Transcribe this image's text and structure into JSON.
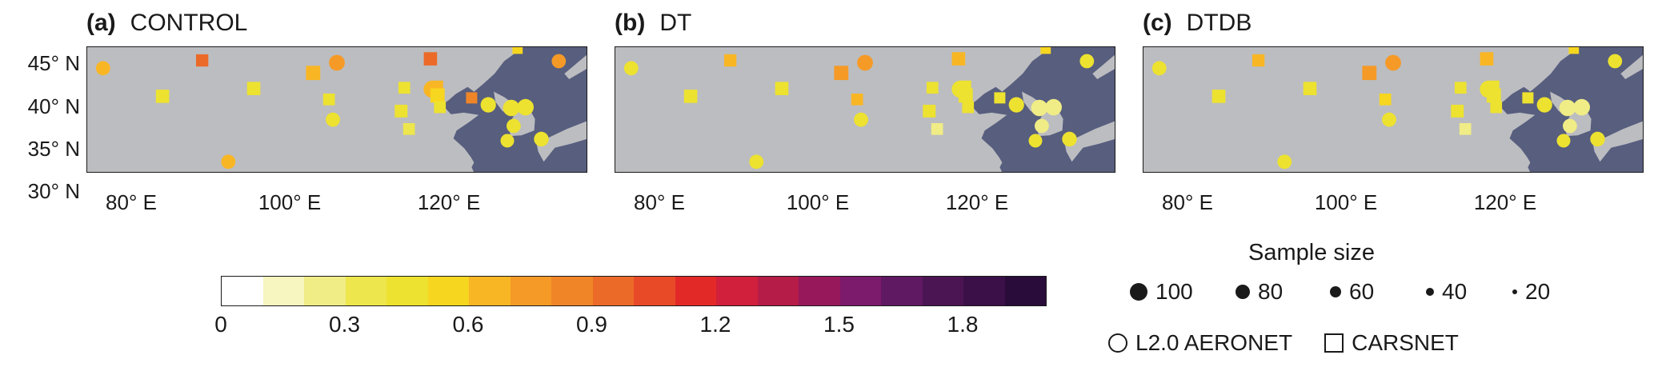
{
  "chart_data": [
    {
      "type": "scatter",
      "panel_label": "(a)",
      "title": "CONTROL",
      "x_ticks": [
        "80° E",
        "100° E",
        "120° E"
      ],
      "y_ticks": [
        "45° N",
        "40° N",
        "35° N",
        "30° N"
      ],
      "xlim": [
        73,
        136
      ],
      "ylim": [
        30,
        46
      ],
      "points": [
        {
          "lon": 75.0,
          "lat": 43.3,
          "value": 0.65,
          "n": 55,
          "network": "L2.0 AERONET"
        },
        {
          "lon": 87.5,
          "lat": 44.3,
          "value": 0.95,
          "n": 50,
          "network": "CARSNET"
        },
        {
          "lon": 82.5,
          "lat": 39.7,
          "value": 0.45,
          "n": 60,
          "network": "CARSNET"
        },
        {
          "lon": 94.0,
          "lat": 40.7,
          "value": 0.45,
          "n": 60,
          "network": "CARSNET"
        },
        {
          "lon": 90.8,
          "lat": 31.3,
          "value": 0.7,
          "n": 55,
          "network": "L2.0 AERONET"
        },
        {
          "lon": 101.5,
          "lat": 42.7,
          "value": 0.65,
          "n": 70,
          "network": "CARSNET"
        },
        {
          "lon": 104.5,
          "lat": 44.0,
          "value": 0.75,
          "n": 70,
          "network": "L2.0 AERONET"
        },
        {
          "lon": 103.5,
          "lat": 39.3,
          "value": 0.45,
          "n": 45,
          "network": "CARSNET"
        },
        {
          "lon": 104.0,
          "lat": 36.7,
          "value": 0.45,
          "n": 55,
          "network": "L2.0 AERONET"
        },
        {
          "lon": 113.0,
          "lat": 40.8,
          "value": 0.45,
          "n": 45,
          "network": "CARSNET"
        },
        {
          "lon": 112.6,
          "lat": 37.8,
          "value": 0.45,
          "n": 55,
          "network": "CARSNET"
        },
        {
          "lon": 113.6,
          "lat": 35.5,
          "value": 0.35,
          "n": 45,
          "network": "CARSNET"
        },
        {
          "lon": 116.3,
          "lat": 44.5,
          "value": 0.95,
          "n": 60,
          "network": "CARSNET"
        },
        {
          "lon": 116.5,
          "lat": 40.6,
          "value": 0.65,
          "n": 80,
          "network": "L2.0 AERONET"
        },
        {
          "lon": 117.1,
          "lat": 40.9,
          "value": 0.7,
          "n": 55,
          "network": "CARSNET"
        },
        {
          "lon": 117.2,
          "lat": 39.8,
          "value": 0.5,
          "n": 70,
          "network": "CARSNET"
        },
        {
          "lon": 117.5,
          "lat": 38.3,
          "value": 0.45,
          "n": 45,
          "network": "CARSNET"
        },
        {
          "lon": 121.5,
          "lat": 39.5,
          "value": 0.8,
          "n": 40,
          "network": "CARSNET"
        },
        {
          "lon": 123.6,
          "lat": 38.6,
          "value": 0.45,
          "n": 65,
          "network": "L2.0 AERONET"
        },
        {
          "lon": 126.5,
          "lat": 38.2,
          "value": 0.45,
          "n": 75,
          "network": "L2.0 AERONET"
        },
        {
          "lon": 128.3,
          "lat": 38.3,
          "value": 0.45,
          "n": 75,
          "network": "L2.0 AERONET"
        },
        {
          "lon": 126.8,
          "lat": 35.9,
          "value": 0.45,
          "n": 55,
          "network": "L2.0 AERONET"
        },
        {
          "lon": 126.0,
          "lat": 34.0,
          "value": 0.45,
          "n": 50,
          "network": "L2.0 AERONET"
        },
        {
          "lon": 130.3,
          "lat": 34.2,
          "value": 0.45,
          "n": 60,
          "network": "L2.0 AERONET"
        },
        {
          "lon": 127.3,
          "lat": 45.8,
          "value": 0.6,
          "n": 30,
          "network": "CARSNET"
        },
        {
          "lon": 132.5,
          "lat": 44.2,
          "value": 0.75,
          "n": 55,
          "network": "L2.0 AERONET"
        }
      ]
    },
    {
      "type": "scatter",
      "panel_label": "(b)",
      "title": "DT",
      "x_ticks": [
        "80° E",
        "100° E",
        "120° E"
      ],
      "y_ticks": [
        "45° N",
        "40° N",
        "35° N",
        "30° N"
      ],
      "xlim": [
        73,
        136
      ],
      "ylim": [
        30,
        46
      ],
      "points": [
        {
          "lon": 75.0,
          "lat": 43.3,
          "value": 0.4,
          "n": 55,
          "network": "L2.0 AERONET"
        },
        {
          "lon": 87.5,
          "lat": 44.3,
          "value": 0.65,
          "n": 50,
          "network": "CARSNET"
        },
        {
          "lon": 82.5,
          "lat": 39.7,
          "value": 0.45,
          "n": 60,
          "network": "CARSNET"
        },
        {
          "lon": 94.0,
          "lat": 40.7,
          "value": 0.45,
          "n": 60,
          "network": "CARSNET"
        },
        {
          "lon": 90.8,
          "lat": 31.3,
          "value": 0.4,
          "n": 55,
          "network": "L2.0 AERONET"
        },
        {
          "lon": 101.5,
          "lat": 42.7,
          "value": 0.75,
          "n": 70,
          "network": "CARSNET"
        },
        {
          "lon": 104.5,
          "lat": 44.0,
          "value": 0.75,
          "n": 70,
          "network": "L2.0 AERONET"
        },
        {
          "lon": 103.5,
          "lat": 39.3,
          "value": 0.65,
          "n": 45,
          "network": "CARSNET"
        },
        {
          "lon": 104.0,
          "lat": 36.7,
          "value": 0.45,
          "n": 55,
          "network": "L2.0 AERONET"
        },
        {
          "lon": 113.0,
          "lat": 40.8,
          "value": 0.45,
          "n": 45,
          "network": "CARSNET"
        },
        {
          "lon": 112.6,
          "lat": 37.8,
          "value": 0.45,
          "n": 55,
          "network": "CARSNET"
        },
        {
          "lon": 113.6,
          "lat": 35.5,
          "value": 0.25,
          "n": 45,
          "network": "CARSNET"
        },
        {
          "lon": 116.3,
          "lat": 44.5,
          "value": 0.7,
          "n": 60,
          "network": "CARSNET"
        },
        {
          "lon": 116.5,
          "lat": 40.6,
          "value": 0.45,
          "n": 80,
          "network": "L2.0 AERONET"
        },
        {
          "lon": 117.1,
          "lat": 40.9,
          "value": 0.45,
          "n": 55,
          "network": "CARSNET"
        },
        {
          "lon": 117.2,
          "lat": 39.8,
          "value": 0.4,
          "n": 70,
          "network": "CARSNET"
        },
        {
          "lon": 117.5,
          "lat": 38.3,
          "value": 0.4,
          "n": 45,
          "network": "CARSNET"
        },
        {
          "lon": 121.5,
          "lat": 39.5,
          "value": 0.45,
          "n": 40,
          "network": "CARSNET"
        },
        {
          "lon": 123.6,
          "lat": 38.6,
          "value": 0.45,
          "n": 65,
          "network": "L2.0 AERONET"
        },
        {
          "lon": 126.5,
          "lat": 38.2,
          "value": 0.25,
          "n": 75,
          "network": "L2.0 AERONET"
        },
        {
          "lon": 128.3,
          "lat": 38.3,
          "value": 0.25,
          "n": 75,
          "network": "L2.0 AERONET"
        },
        {
          "lon": 126.8,
          "lat": 35.9,
          "value": 0.25,
          "n": 55,
          "network": "L2.0 AERONET"
        },
        {
          "lon": 126.0,
          "lat": 34.0,
          "value": 0.45,
          "n": 50,
          "network": "L2.0 AERONET"
        },
        {
          "lon": 130.3,
          "lat": 34.2,
          "value": 0.45,
          "n": 60,
          "network": "L2.0 AERONET"
        },
        {
          "lon": 127.3,
          "lat": 45.8,
          "value": 0.5,
          "n": 30,
          "network": "CARSNET"
        },
        {
          "lon": 132.5,
          "lat": 44.2,
          "value": 0.45,
          "n": 55,
          "network": "L2.0 AERONET"
        }
      ]
    },
    {
      "type": "scatter",
      "panel_label": "(c)",
      "title": "DTDB",
      "x_ticks": [
        "80° E",
        "100° E",
        "120° E"
      ],
      "y_ticks": [
        "45° N",
        "40° N",
        "35° N",
        "30° N"
      ],
      "xlim": [
        73,
        136
      ],
      "ylim": [
        30,
        46
      ],
      "points": [
        {
          "lon": 75.0,
          "lat": 43.3,
          "value": 0.4,
          "n": 55,
          "network": "L2.0 AERONET"
        },
        {
          "lon": 87.5,
          "lat": 44.3,
          "value": 0.7,
          "n": 50,
          "network": "CARSNET"
        },
        {
          "lon": 82.5,
          "lat": 39.7,
          "value": 0.45,
          "n": 60,
          "network": "CARSNET"
        },
        {
          "lon": 94.0,
          "lat": 40.7,
          "value": 0.45,
          "n": 60,
          "network": "CARSNET"
        },
        {
          "lon": 90.8,
          "lat": 31.3,
          "value": 0.4,
          "n": 55,
          "network": "L2.0 AERONET"
        },
        {
          "lon": 101.5,
          "lat": 42.7,
          "value": 0.75,
          "n": 70,
          "network": "CARSNET"
        },
        {
          "lon": 104.5,
          "lat": 44.0,
          "value": 0.75,
          "n": 70,
          "network": "L2.0 AERONET"
        },
        {
          "lon": 103.5,
          "lat": 39.3,
          "value": 0.5,
          "n": 45,
          "network": "CARSNET"
        },
        {
          "lon": 104.0,
          "lat": 36.7,
          "value": 0.45,
          "n": 55,
          "network": "L2.0 AERONET"
        },
        {
          "lon": 113.0,
          "lat": 40.8,
          "value": 0.45,
          "n": 45,
          "network": "CARSNET"
        },
        {
          "lon": 112.6,
          "lat": 37.8,
          "value": 0.45,
          "n": 55,
          "network": "CARSNET"
        },
        {
          "lon": 113.6,
          "lat": 35.5,
          "value": 0.25,
          "n": 45,
          "network": "CARSNET"
        },
        {
          "lon": 116.3,
          "lat": 44.5,
          "value": 0.65,
          "n": 60,
          "network": "CARSNET"
        },
        {
          "lon": 116.5,
          "lat": 40.6,
          "value": 0.45,
          "n": 80,
          "network": "L2.0 AERONET"
        },
        {
          "lon": 117.1,
          "lat": 40.9,
          "value": 0.45,
          "n": 55,
          "network": "CARSNET"
        },
        {
          "lon": 117.2,
          "lat": 39.8,
          "value": 0.45,
          "n": 70,
          "network": "CARSNET"
        },
        {
          "lon": 117.5,
          "lat": 38.3,
          "value": 0.45,
          "n": 45,
          "network": "CARSNET"
        },
        {
          "lon": 121.5,
          "lat": 39.5,
          "value": 0.4,
          "n": 40,
          "network": "CARSNET"
        },
        {
          "lon": 123.6,
          "lat": 38.6,
          "value": 0.45,
          "n": 65,
          "network": "L2.0 AERONET"
        },
        {
          "lon": 126.5,
          "lat": 38.2,
          "value": 0.25,
          "n": 75,
          "network": "L2.0 AERONET"
        },
        {
          "lon": 128.3,
          "lat": 38.3,
          "value": 0.25,
          "n": 75,
          "network": "L2.0 AERONET"
        },
        {
          "lon": 126.8,
          "lat": 35.9,
          "value": 0.3,
          "n": 55,
          "network": "L2.0 AERONET"
        },
        {
          "lon": 126.0,
          "lat": 34.0,
          "value": 0.4,
          "n": 50,
          "network": "L2.0 AERONET"
        },
        {
          "lon": 130.3,
          "lat": 34.2,
          "value": 0.45,
          "n": 60,
          "network": "L2.0 AERONET"
        },
        {
          "lon": 127.3,
          "lat": 45.8,
          "value": 0.55,
          "n": 30,
          "network": "CARSNET"
        },
        {
          "lon": 132.5,
          "lat": 44.2,
          "value": 0.45,
          "n": 55,
          "network": "L2.0 AERONET"
        }
      ]
    }
  ],
  "colorbar": {
    "range": [
      0,
      2.0
    ],
    "step": 0.1,
    "ticks": [
      "0",
      "0.3",
      "0.6",
      "0.9",
      "1.2",
      "1.5",
      "1.8"
    ],
    "tick_values": [
      0,
      0.3,
      0.6,
      0.9,
      1.2,
      1.5,
      1.8
    ],
    "colors": [
      "#ffffff",
      "#f7f5c0",
      "#f0ec86",
      "#ede64d",
      "#ede22f",
      "#f7d61f",
      "#f9b624",
      "#f59a27",
      "#f08528",
      "#ec6a28",
      "#e84a27",
      "#e32928",
      "#d0203c",
      "#b51d48",
      "#97195b",
      "#7c1a6b",
      "#5f1862",
      "#4b1453",
      "#3b1048",
      "#290c3a"
    ]
  },
  "legend": {
    "size_title": "Sample size",
    "sizes": [
      {
        "label": "100",
        "n": 100
      },
      {
        "label": "80",
        "n": 80
      },
      {
        "label": "60",
        "n": 60
      },
      {
        "label": "40",
        "n": 40
      },
      {
        "label": "20",
        "n": 20
      }
    ],
    "aeronet_label": "L2.0 AERONET",
    "carsnet_label": "CARSNET"
  },
  "colors": {
    "land": "#bcbdc0",
    "sea": "#575e7e",
    "stroke": "#1a1a1a"
  }
}
